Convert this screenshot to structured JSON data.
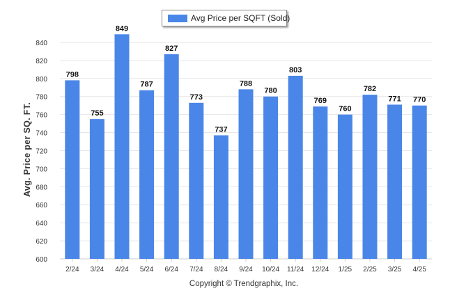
{
  "legend": {
    "label": "Avg Price per SQFT (Sold)"
  },
  "colors": {
    "bar": "#4a86e8",
    "grid": "#e6e6e6",
    "axis": "#cccccc",
    "text": "#333333"
  },
  "footer": {
    "copyright": "Copyright © Trendgraphix, Inc."
  },
  "chart_data": {
    "type": "bar",
    "categories": [
      "2/24",
      "3/24",
      "4/24",
      "5/24",
      "6/24",
      "7/24",
      "8/24",
      "9/24",
      "10/24",
      "11/24",
      "12/24",
      "1/25",
      "2/25",
      "3/25",
      "4/25"
    ],
    "series": [
      {
        "name": "Avg Price per SQFT (Sold)",
        "values": [
          798,
          755,
          849,
          787,
          827,
          773,
          737,
          788,
          780,
          803,
          769,
          760,
          782,
          771,
          770
        ]
      }
    ],
    "ylabel": "Avg. Price per SQ. FT.",
    "xlabel": "",
    "ylim": [
      600,
      850
    ],
    "yticks": [
      600,
      620,
      640,
      660,
      680,
      700,
      720,
      740,
      760,
      780,
      800,
      820,
      840
    ],
    "grid": true,
    "data_labels": true,
    "legend_position": "top-center"
  }
}
